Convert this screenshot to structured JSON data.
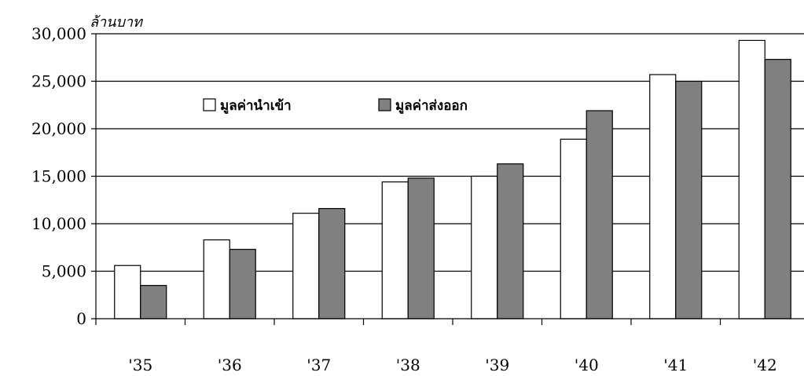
{
  "chart_data": {
    "type": "bar",
    "unit_label": "ล้านบาท",
    "categories": [
      "'35",
      "'36",
      "'37",
      "'38",
      "'39",
      "'40",
      "'41",
      "'42"
    ],
    "series": [
      {
        "name": "มูลค่านำเข้า",
        "color": "#ffffff",
        "values": [
          5600,
          8300,
          11100,
          14400,
          15000,
          18900,
          25700,
          29300
        ]
      },
      {
        "name": "มูลค่าส่งออก",
        "color": "#808080",
        "values": [
          3500,
          7300,
          11600,
          14800,
          16300,
          21900,
          25000,
          27300
        ]
      }
    ],
    "y_ticks": [
      "0",
      "5,000",
      "10,000",
      "15,000",
      "20,000",
      "25,000",
      "30,000"
    ],
    "ylim": [
      0,
      30000
    ],
    "grid": true,
    "legend_position": "top-left"
  }
}
